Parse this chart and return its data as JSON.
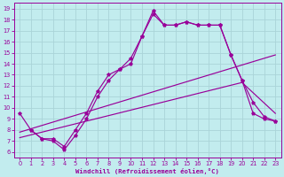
{
  "xlabel": "Windchill (Refroidissement éolien,°C)",
  "xlim": [
    -0.5,
    23.5
  ],
  "ylim": [
    5.5,
    19.5
  ],
  "xticks": [
    0,
    1,
    2,
    3,
    4,
    5,
    6,
    7,
    8,
    9,
    10,
    11,
    12,
    13,
    14,
    15,
    16,
    17,
    18,
    19,
    20,
    21,
    22,
    23
  ],
  "yticks": [
    6,
    7,
    8,
    9,
    10,
    11,
    12,
    13,
    14,
    15,
    16,
    17,
    18,
    19
  ],
  "bg_color": "#c2ecee",
  "line_color": "#990099",
  "grid_color": "#aad4d8",
  "curve1_x": [
    0,
    1,
    2,
    3,
    4,
    5,
    6,
    7,
    8,
    9,
    10,
    11,
    12,
    13,
    14,
    15,
    16,
    17,
    18,
    19,
    20,
    21,
    22,
    23
  ],
  "curve1_y": [
    9.5,
    8.0,
    7.2,
    7.0,
    6.2,
    7.5,
    9.0,
    11.0,
    12.5,
    13.5,
    14.0,
    16.5,
    18.8,
    17.5,
    17.5,
    17.8,
    17.5,
    17.5,
    17.5,
    14.8,
    12.5,
    9.5,
    9.0,
    8.8
  ],
  "curve2_x": [
    1,
    2,
    3,
    4,
    5,
    6,
    7,
    8,
    9,
    10,
    11,
    12,
    13,
    14,
    15,
    16,
    17,
    18,
    19,
    20,
    21,
    22,
    23
  ],
  "curve2_y": [
    8.0,
    7.2,
    7.2,
    6.5,
    8.0,
    9.5,
    11.5,
    13.0,
    13.5,
    14.5,
    16.5,
    18.5,
    17.5,
    17.5,
    17.8,
    17.5,
    17.5,
    17.5,
    14.8,
    12.5,
    10.5,
    9.2,
    8.8
  ],
  "line3_x": [
    0,
    23
  ],
  "line3_y": [
    7.8,
    14.8
  ],
  "line4_x": [
    0,
    20,
    23
  ],
  "line4_y": [
    7.3,
    12.3,
    9.5
  ]
}
